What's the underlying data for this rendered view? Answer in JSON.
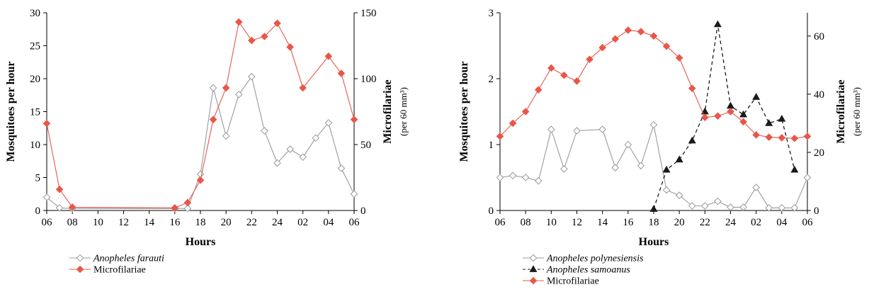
{
  "chart_data": [
    {
      "type": "line",
      "xlabel": "Hours",
      "x_ticks": [
        "06",
        "08",
        "10",
        "12",
        "14",
        "16",
        "18",
        "20",
        "22",
        "24",
        "02",
        "04",
        "06"
      ],
      "y_left": {
        "label": "Mosquitoes per hour",
        "ylim": [
          0,
          30
        ],
        "ticks": [
          0,
          5,
          10,
          15,
          20,
          25,
          30
        ]
      },
      "y_right": {
        "label": "Microfilariae",
        "sublabel": "(per 60 mm³)",
        "ylim": [
          0,
          150
        ],
        "ticks": [
          0,
          50,
          100,
          150
        ]
      },
      "legend_placement": "bottom-left",
      "series": [
        {
          "name": "Anopheles farauti",
          "axis": "left",
          "color": "#9a9a9a",
          "marker": "open-diamond",
          "style": "solid",
          "points": [
            [
              6,
              2.0
            ],
            [
              7,
              0.4
            ],
            [
              8,
              0.3
            ],
            [
              16,
              0.3
            ],
            [
              17,
              0.3
            ],
            [
              18,
              5.5
            ],
            [
              19,
              18.6
            ],
            [
              20,
              11.3
            ],
            [
              21,
              17.6
            ],
            [
              22,
              20.3
            ],
            [
              23,
              12.1
            ],
            [
              24,
              7.2
            ],
            [
              25,
              9.3
            ],
            [
              26,
              8.1
            ],
            [
              27,
              11.0
            ],
            [
              28,
              13.3
            ],
            [
              29,
              6.4
            ],
            [
              30,
              2.5
            ]
          ]
        },
        {
          "name": "Microfilariae",
          "axis": "right",
          "color": "#e8574a",
          "marker": "filled-diamond",
          "style": "solid",
          "points": [
            [
              6,
              66
            ],
            [
              7,
              16
            ],
            [
              8,
              2.5
            ],
            [
              16,
              2
            ],
            [
              17,
              6
            ],
            [
              18,
              23
            ],
            [
              19,
              69
            ],
            [
              20,
              93
            ],
            [
              21,
              143
            ],
            [
              22,
              129
            ],
            [
              23,
              132
            ],
            [
              24,
              142
            ],
            [
              25,
              124
            ],
            [
              26,
              93
            ],
            [
              28,
              117
            ],
            [
              29,
              104
            ],
            [
              30,
              69
            ]
          ]
        }
      ]
    },
    {
      "type": "line",
      "xlabel": "Hours",
      "x_ticks": [
        "06",
        "08",
        "10",
        "12",
        "14",
        "16",
        "18",
        "20",
        "22",
        "24",
        "02",
        "04",
        "06"
      ],
      "y_left": {
        "label": "Mosquitoes per hour",
        "ylim": [
          0,
          3
        ],
        "ticks": [
          0,
          1,
          2,
          3
        ]
      },
      "y_right": {
        "label": "Microfilariae",
        "sublabel": "(per 60 mm³)",
        "ylim": [
          0,
          68
        ],
        "ticks": [
          0,
          20,
          40,
          60
        ]
      },
      "legend_placement": "bottom-left",
      "series": [
        {
          "name": "Anopheles polynesiensis",
          "axis": "left",
          "color": "#9a9a9a",
          "marker": "open-diamond",
          "style": "solid",
          "points": [
            [
              6,
              0.5
            ],
            [
              7,
              0.53
            ],
            [
              8,
              0.5
            ],
            [
              9,
              0.45
            ],
            [
              10,
              1.23
            ],
            [
              11,
              0.63
            ],
            [
              12,
              1.21
            ],
            [
              14,
              1.23
            ],
            [
              15,
              0.65
            ],
            [
              16,
              1.0
            ],
            [
              17,
              0.68
            ],
            [
              18,
              1.3
            ],
            [
              19,
              0.31
            ],
            [
              20,
              0.23
            ],
            [
              21,
              0.07
            ],
            [
              22,
              0.07
            ],
            [
              23,
              0.14
            ],
            [
              24,
              0.05
            ],
            [
              25,
              0.05
            ],
            [
              26,
              0.35
            ],
            [
              27,
              0.04
            ],
            [
              28,
              0.04
            ],
            [
              29,
              0.04
            ],
            [
              30,
              0.5
            ]
          ]
        },
        {
          "name": "Anopheles samoanus",
          "axis": "right",
          "color": "#1a1a1a",
          "marker": "filled-triangle",
          "style": "dashed",
          "points": [
            [
              18,
              0.5
            ],
            [
              19,
              14
            ],
            [
              20,
              17.5
            ],
            [
              21,
              24
            ],
            [
              22,
              34
            ],
            [
              23,
              64
            ],
            [
              24,
              36
            ],
            [
              25,
              33
            ],
            [
              26,
              39
            ],
            [
              27,
              30
            ],
            [
              28,
              31.5
            ],
            [
              29,
              14
            ]
          ]
        },
        {
          "name": "Microfilariae",
          "axis": "right",
          "color": "#e8574a",
          "marker": "filled-diamond",
          "style": "solid",
          "points": [
            [
              6,
              25.5
            ],
            [
              7,
              30
            ],
            [
              8,
              34
            ],
            [
              9,
              41.5
            ],
            [
              10,
              49
            ],
            [
              11,
              46.5
            ],
            [
              12,
              44.5
            ],
            [
              13,
              52
            ],
            [
              14,
              56
            ],
            [
              15,
              59
            ],
            [
              16,
              62
            ],
            [
              17,
              61.5
            ],
            [
              18,
              60
            ],
            [
              19,
              56.5
            ],
            [
              20,
              52.5
            ],
            [
              21,
              42
            ],
            [
              22,
              32
            ],
            [
              23,
              32.5
            ],
            [
              24,
              34
            ],
            [
              25,
              30.5
            ],
            [
              26,
              26
            ],
            [
              27,
              25.2
            ],
            [
              28,
              25
            ],
            [
              29,
              24.8
            ],
            [
              30,
              25.5
            ]
          ]
        }
      ]
    }
  ]
}
